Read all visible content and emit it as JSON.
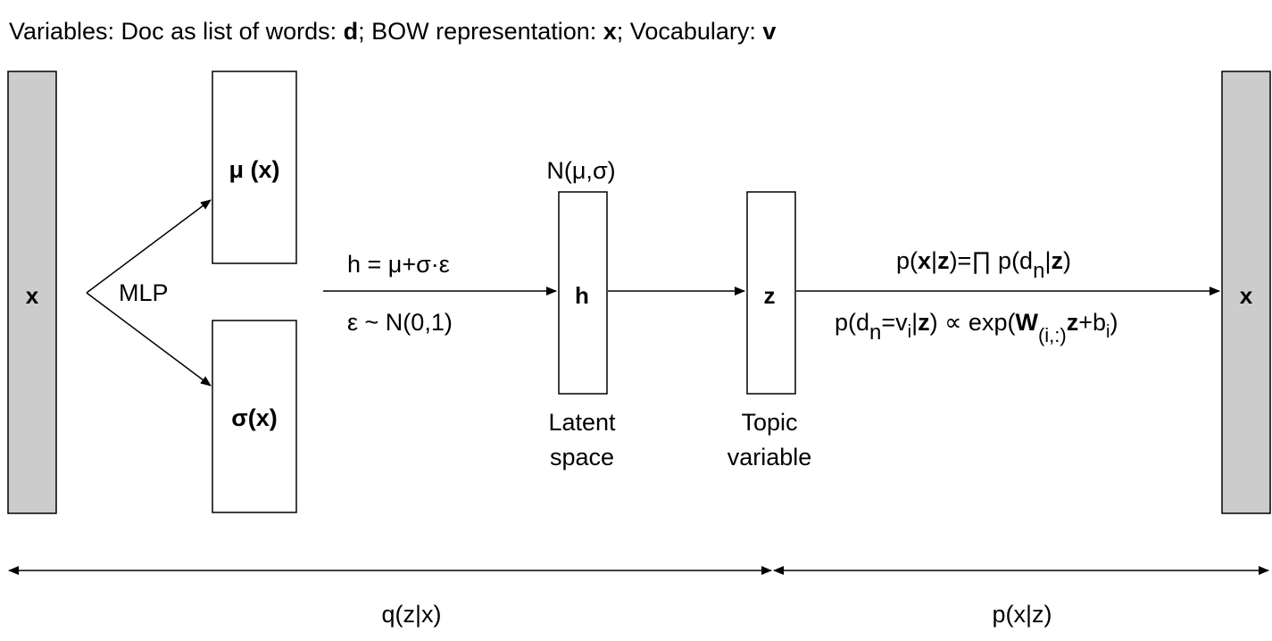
{
  "header": {
    "prefix": "Variables: Doc as list of words: ",
    "d": "d",
    "sep1": "; BOW representation: ",
    "x": "x",
    "sep2": "; Vocabulary: ",
    "v": "v"
  },
  "nodes": {
    "input_x": "x",
    "output_x": "x",
    "mu": "μ (x)",
    "sigma": "σ(x)",
    "h": "h",
    "z": "z"
  },
  "labels": {
    "mlp": "MLP",
    "n_mu_sigma": "N(μ,σ)",
    "reparam_top": "h = μ+σ·ε",
    "reparam_bottom": "ε ~ N(0,1)",
    "latent_line1": "Latent",
    "latent_line2": "space",
    "topic_line1": "Topic",
    "topic_line2": "variable",
    "q": "q(z|x)",
    "p": "p(x|z)"
  },
  "formula_top": {
    "p_open": "p(",
    "x": "x",
    "bar": "|",
    "z": "z",
    "eq": ")=∏ p(d",
    "n": "n",
    "bar2": "|",
    "z2": "z",
    "close": ")"
  },
  "formula_bottom": {
    "p_open": "p(d",
    "n": "n",
    "eq": "=v",
    "i": "i",
    "bar": "|",
    "z": "z",
    "prop": ")  ∝ exp(",
    "W": "W",
    "sub": "(i,:)",
    "z2": "z",
    "plus": "+b",
    "i2": "i",
    "close": ")"
  },
  "colors": {
    "gray_bar": "#cccccc",
    "line": "#000000"
  }
}
